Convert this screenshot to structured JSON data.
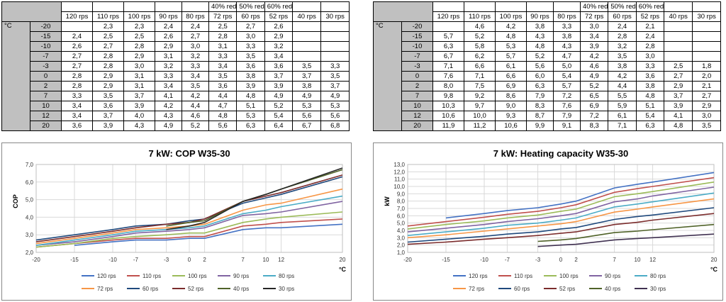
{
  "tables": [
    {
      "unit_label": "°C",
      "red_labels": [
        "40% red",
        "50% red",
        "60% red"
      ],
      "headers": [
        "120 rps",
        "110 rps",
        "100 rps",
        "90 rps",
        "80 rps",
        "72 rps",
        "60 rps",
        "52 rps",
        "40 rps",
        "30 rps"
      ],
      "rows": [
        {
          "t": "-20",
          "v": [
            "",
            "2,3",
            "2,3",
            "2,4",
            "2,4",
            "2,5",
            "2,7",
            "2,6",
            "",
            ""
          ]
        },
        {
          "t": "-15",
          "v": [
            "2,4",
            "2,5",
            "2,5",
            "2,6",
            "2,7",
            "2,8",
            "3,0",
            "2,9",
            "",
            ""
          ]
        },
        {
          "t": "-10",
          "v": [
            "2,6",
            "2,7",
            "2,8",
            "2,9",
            "3,0",
            "3,1",
            "3,3",
            "3,2",
            "",
            ""
          ]
        },
        {
          "t": "-7",
          "v": [
            "2,7",
            "2,8",
            "2,9",
            "3,1",
            "3,2",
            "3,3",
            "3,5",
            "3,4",
            "",
            ""
          ]
        },
        {
          "t": "-3",
          "v": [
            "2,7",
            "2,8",
            "3,0",
            "3,2",
            "3,3",
            "3,4",
            "3,6",
            "3,6",
            "3,5",
            "3,3"
          ]
        },
        {
          "t": "0",
          "v": [
            "2,8",
            "2,9",
            "3,1",
            "3,3",
            "3,4",
            "3,5",
            "3,8",
            "3,7",
            "3,7",
            "3,5"
          ]
        },
        {
          "t": "2",
          "v": [
            "2,8",
            "2,9",
            "3,1",
            "3,4",
            "3,5",
            "3,6",
            "3,9",
            "3,9",
            "3,8",
            "3,7"
          ]
        },
        {
          "t": "7",
          "v": [
            "3,3",
            "3,5",
            "3,7",
            "4,1",
            "4,2",
            "4,4",
            "4,8",
            "4,9",
            "4,9",
            "4,9"
          ]
        },
        {
          "t": "10",
          "v": [
            "3,4",
            "3,6",
            "3,9",
            "4,2",
            "4,4",
            "4,7",
            "5,1",
            "5,2",
            "5,3",
            "5,3"
          ]
        },
        {
          "t": "12",
          "v": [
            "3,4",
            "3,7",
            "4,0",
            "4,3",
            "4,6",
            "4,8",
            "5,3",
            "5,4",
            "5,6",
            "5,6"
          ]
        },
        {
          "t": "20",
          "v": [
            "3,6",
            "3,9",
            "4,3",
            "4,9",
            "5,2",
            "5,6",
            "6,3",
            "6,4",
            "6,7",
            "6,8"
          ]
        }
      ]
    },
    {
      "unit_label": "°C",
      "red_labels": [
        "40% red",
        "50% red",
        "60% red"
      ],
      "headers": [
        "120 rps",
        "110 rps",
        "100 rps",
        "90 rps",
        "80 rps",
        "72 rps",
        "60 rps",
        "52 rps",
        "40 rps",
        "30 rps"
      ],
      "rows": [
        {
          "t": "-20",
          "v": [
            "",
            "4,6",
            "4,2",
            "3,8",
            "3,3",
            "3,0",
            "2,4",
            "2,1",
            "",
            ""
          ]
        },
        {
          "t": "-15",
          "v": [
            "5,7",
            "5,2",
            "4,8",
            "4,3",
            "3,8",
            "3,4",
            "2,8",
            "2,4",
            "",
            ""
          ]
        },
        {
          "t": "-10",
          "v": [
            "6,3",
            "5,8",
            "5,3",
            "4,8",
            "4,3",
            "3,9",
            "3,2",
            "2,8",
            "",
            ""
          ]
        },
        {
          "t": "-7",
          "v": [
            "6,7",
            "6,2",
            "5,7",
            "5,2",
            "4,7",
            "4,2",
            "3,5",
            "3,0",
            "",
            ""
          ]
        },
        {
          "t": "-3",
          "v": [
            "7,1",
            "6,6",
            "6,1",
            "5,6",
            "5,0",
            "4,6",
            "3,8",
            "3,3",
            "2,5",
            "1,8"
          ]
        },
        {
          "t": "0",
          "v": [
            "7,6",
            "7,1",
            "6,6",
            "6,0",
            "5,4",
            "4,9",
            "4,2",
            "3,6",
            "2,7",
            "2,0"
          ]
        },
        {
          "t": "2",
          "v": [
            "8,0",
            "7,5",
            "6,9",
            "6,3",
            "5,7",
            "5,2",
            "4,4",
            "3,8",
            "2,9",
            "2,1"
          ]
        },
        {
          "t": "7",
          "v": [
            "9,8",
            "9,2",
            "8,6",
            "7,9",
            "7,2",
            "6,5",
            "5,5",
            "4,8",
            "3,7",
            "2,7"
          ]
        },
        {
          "t": "10",
          "v": [
            "10,3",
            "9,7",
            "9,0",
            "8,3",
            "7,6",
            "6,9",
            "5,9",
            "5,1",
            "3,9",
            "2,9"
          ]
        },
        {
          "t": "12",
          "v": [
            "10,6",
            "10,0",
            "9,3",
            "8,7",
            "7,9",
            "7,2",
            "6,1",
            "5,4",
            "4,1",
            "3,0"
          ]
        },
        {
          "t": "20",
          "v": [
            "11,9",
            "11,2",
            "10,6",
            "9,9",
            "9,1",
            "8,3",
            "7,1",
            "6,3",
            "4,8",
            "3,5"
          ]
        }
      ]
    }
  ],
  "chart_data": [
    {
      "type": "line",
      "title": "7 kW: COP W35-30",
      "ylabel": "COP",
      "xlabel": "°C",
      "x": [
        -20,
        -15,
        -10,
        -7,
        -3,
        0,
        2,
        7,
        10,
        12,
        20
      ],
      "xticks": [
        "-20",
        "-15",
        "-10",
        "-7",
        "-3",
        "0",
        "2",
        "7",
        "10",
        "12",
        "20"
      ],
      "ylim": [
        2.0,
        7.0
      ],
      "yticks": [
        "2,0",
        "3,0",
        "4,0",
        "5,0",
        "6,0",
        "7,0"
      ],
      "legend_position": "bottom",
      "series": [
        {
          "name": "120 rps",
          "color": "#4472c4",
          "values": [
            null,
            2.4,
            2.6,
            2.7,
            2.7,
            2.8,
            2.8,
            3.3,
            3.4,
            3.4,
            3.6
          ]
        },
        {
          "name": "110 rps",
          "color": "#c0504d",
          "values": [
            2.3,
            2.5,
            2.7,
            2.8,
            2.8,
            2.9,
            2.9,
            3.5,
            3.6,
            3.7,
            3.9
          ]
        },
        {
          "name": "100 rps",
          "color": "#9bbb59",
          "values": [
            2.3,
            2.5,
            2.8,
            2.9,
            3.0,
            3.1,
            3.1,
            3.7,
            3.9,
            4.0,
            4.3
          ]
        },
        {
          "name": "90 rps",
          "color": "#8064a2",
          "values": [
            2.4,
            2.6,
            2.9,
            3.1,
            3.2,
            3.3,
            3.4,
            4.1,
            4.2,
            4.3,
            4.9
          ]
        },
        {
          "name": "80 rps",
          "color": "#4bacc6",
          "values": [
            2.4,
            2.7,
            3.0,
            3.2,
            3.3,
            3.4,
            3.5,
            4.2,
            4.4,
            4.6,
            5.2
          ]
        },
        {
          "name": "72 rps",
          "color": "#f79646",
          "values": [
            2.5,
            2.8,
            3.1,
            3.3,
            3.4,
            3.5,
            3.6,
            4.4,
            4.7,
            4.8,
            5.6
          ]
        },
        {
          "name": "60 rps",
          "color": "#1f497d",
          "values": [
            2.7,
            3.0,
            3.3,
            3.5,
            3.6,
            3.8,
            3.9,
            4.8,
            5.1,
            5.3,
            6.3
          ]
        },
        {
          "name": "52 rps",
          "color": "#7b2c2c",
          "values": [
            2.6,
            2.9,
            3.2,
            3.4,
            3.6,
            3.7,
            3.9,
            4.9,
            5.2,
            5.4,
            6.4
          ]
        },
        {
          "name": "40 rps",
          "color": "#4f6228",
          "values": [
            null,
            null,
            null,
            null,
            3.5,
            3.7,
            3.8,
            4.9,
            5.3,
            5.6,
            6.7
          ]
        },
        {
          "name": "30 rps",
          "color": "#262626",
          "values": [
            null,
            null,
            null,
            null,
            3.3,
            3.5,
            3.7,
            4.9,
            5.3,
            5.6,
            6.8
          ]
        }
      ]
    },
    {
      "type": "line",
      "title": "7 kW: Heating capacity W35-30",
      "ylabel": "kW",
      "xlabel": "°C",
      "x": [
        -20,
        -15,
        -10,
        -7,
        -3,
        0,
        2,
        7,
        10,
        12,
        20
      ],
      "xticks": [
        "-20",
        "-15",
        "-10",
        "-7",
        "-3",
        "0",
        "2",
        "7",
        "10",
        "12",
        "20"
      ],
      "ylim": [
        1.0,
        13.0
      ],
      "yticks": [
        "1,0",
        "2,0",
        "3,0",
        "4,0",
        "5,0",
        "6,0",
        "7,0",
        "8,0",
        "9,0",
        "10,0",
        "11,0",
        "12,0",
        "13,0"
      ],
      "legend_position": "bottom",
      "series": [
        {
          "name": "120 rps",
          "color": "#4472c4",
          "values": [
            null,
            5.7,
            6.3,
            6.7,
            7.1,
            7.6,
            8.0,
            9.8,
            10.3,
            10.6,
            11.9
          ]
        },
        {
          "name": "110 rps",
          "color": "#c0504d",
          "values": [
            4.6,
            5.2,
            5.8,
            6.2,
            6.6,
            7.1,
            7.5,
            9.2,
            9.7,
            10.0,
            11.2
          ]
        },
        {
          "name": "100 rps",
          "color": "#9bbb59",
          "values": [
            4.2,
            4.8,
            5.3,
            5.7,
            6.1,
            6.6,
            6.9,
            8.6,
            9.0,
            9.3,
            10.6
          ]
        },
        {
          "name": "90 rps",
          "color": "#8064a2",
          "values": [
            3.8,
            4.3,
            4.8,
            5.2,
            5.6,
            6.0,
            6.3,
            7.9,
            8.3,
            8.7,
            9.9
          ]
        },
        {
          "name": "80 rps",
          "color": "#4bacc6",
          "values": [
            3.3,
            3.8,
            4.3,
            4.7,
            5.0,
            5.4,
            5.7,
            7.2,
            7.6,
            7.9,
            9.1
          ]
        },
        {
          "name": "72 rps",
          "color": "#f79646",
          "values": [
            3.0,
            3.4,
            3.9,
            4.2,
            4.6,
            4.9,
            5.2,
            6.5,
            6.9,
            7.2,
            8.3
          ]
        },
        {
          "name": "60 rps",
          "color": "#1f497d",
          "values": [
            2.4,
            2.8,
            3.2,
            3.5,
            3.8,
            4.2,
            4.4,
            5.5,
            5.9,
            6.1,
            7.1
          ]
        },
        {
          "name": "52 rps",
          "color": "#7b2c2c",
          "values": [
            2.1,
            2.4,
            2.8,
            3.0,
            3.3,
            3.6,
            3.8,
            4.8,
            5.1,
            5.4,
            6.3
          ]
        },
        {
          "name": "40 rps",
          "color": "#4f6228",
          "values": [
            null,
            null,
            null,
            null,
            2.5,
            2.7,
            2.9,
            3.7,
            3.9,
            4.1,
            4.8
          ]
        },
        {
          "name": "30 rps",
          "color": "#403151",
          "values": [
            null,
            null,
            null,
            null,
            1.8,
            2.0,
            2.1,
            2.7,
            2.9,
            3.0,
            3.5
          ]
        }
      ]
    }
  ]
}
